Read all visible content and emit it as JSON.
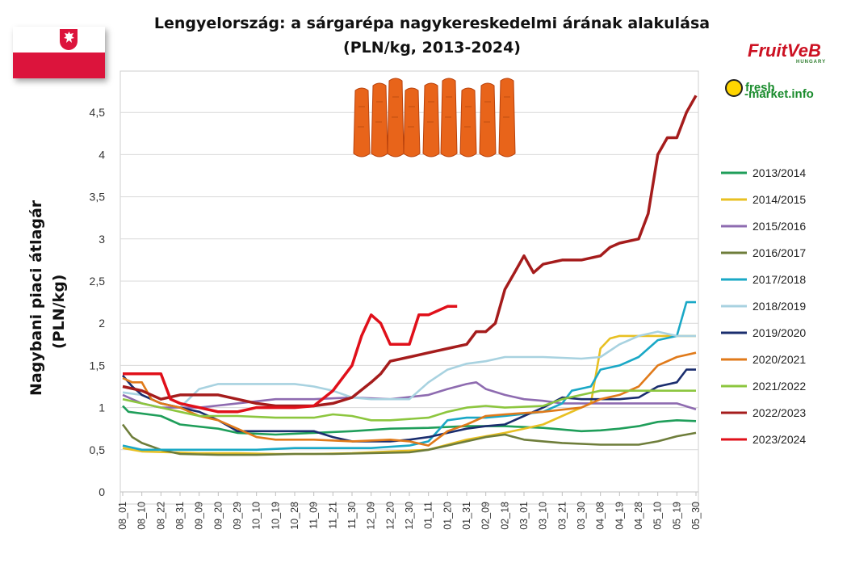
{
  "header": {
    "title_line1": "Lengyelország: a sárgarépa nagykereskedelmi árának alakulása",
    "title_line2": "(PLN/kg, 2013-2024)"
  },
  "yaxis_label_line1": "Nagybani piaci átlagár",
  "yaxis_label_line2": "(PLN/kg)",
  "logos": {
    "fruitveb": "FruitVeB",
    "fruitveb_sub": "HUNGARY",
    "freshmarket_line1": "fresh",
    "freshmarket_line2": "-market.info"
  },
  "chart_data": {
    "type": "line",
    "xlabel": "",
    "ylabel": "Nagybani piaci átlagár (PLN/kg)",
    "ylim": [
      0,
      5
    ],
    "yticks": [
      0,
      0.5,
      1,
      1.5,
      2,
      2.5,
      3,
      3.5,
      4,
      4.5
    ],
    "ytick_labels": [
      "0",
      "0,5",
      "1",
      "1,5",
      "2",
      "2,5",
      "3",
      "3,5",
      "4",
      "4,5"
    ],
    "x_categories": [
      "08_01",
      "08_10",
      "08_22",
      "08_31",
      "09_09",
      "09_20",
      "09_29",
      "10_10",
      "10_19",
      "10_28",
      "11_09",
      "11_21",
      "11_30",
      "12_09",
      "12_20",
      "12_30",
      "01_11",
      "01_20",
      "01_31",
      "02_09",
      "02_18",
      "03_01",
      "03_10",
      "03_21",
      "03_30",
      "04_08",
      "04_19",
      "04_28",
      "05_10",
      "05_19",
      "05_30"
    ],
    "grid": "horizontal",
    "legend_position": "right",
    "series": [
      {
        "name": "2013/2014",
        "color": "#1f9e5a",
        "points": [
          [
            0,
            1.02
          ],
          [
            0.3,
            0.95
          ],
          [
            2,
            0.9
          ],
          [
            3,
            0.8
          ],
          [
            5,
            0.75
          ],
          [
            6,
            0.7
          ],
          [
            8,
            0.68
          ],
          [
            10,
            0.7
          ],
          [
            12,
            0.72
          ],
          [
            14,
            0.75
          ],
          [
            16,
            0.76
          ],
          [
            18,
            0.78
          ],
          [
            20,
            0.78
          ],
          [
            22,
            0.76
          ],
          [
            24,
            0.72
          ],
          [
            25,
            0.73
          ],
          [
            26,
            0.75
          ],
          [
            27,
            0.78
          ],
          [
            28,
            0.83
          ],
          [
            29,
            0.85
          ],
          [
            30,
            0.84
          ]
        ]
      },
      {
        "name": "2014/2015",
        "color": "#e8c022",
        "points": [
          [
            0,
            0.52
          ],
          [
            1,
            0.48
          ],
          [
            4,
            0.46
          ],
          [
            6,
            0.46
          ],
          [
            8,
            0.45
          ],
          [
            10,
            0.45
          ],
          [
            12,
            0.46
          ],
          [
            14,
            0.48
          ],
          [
            16,
            0.5
          ],
          [
            17,
            0.56
          ],
          [
            18,
            0.62
          ],
          [
            20,
            0.7
          ],
          [
            22,
            0.8
          ],
          [
            23,
            0.9
          ],
          [
            24.5,
            1.05
          ],
          [
            25,
            1.7
          ],
          [
            25.5,
            1.82
          ],
          [
            26,
            1.85
          ],
          [
            28,
            1.85
          ],
          [
            29,
            1.85
          ],
          [
            30,
            1.85
          ]
        ]
      },
      {
        "name": "2015/2016",
        "color": "#8e6bb0",
        "points": [
          [
            0,
            1.15
          ],
          [
            1,
            1.05
          ],
          [
            2,
            1.0
          ],
          [
            4,
            1.0
          ],
          [
            6,
            1.05
          ],
          [
            8,
            1.1
          ],
          [
            10,
            1.1
          ],
          [
            12,
            1.12
          ],
          [
            14,
            1.1
          ],
          [
            16,
            1.15
          ],
          [
            17,
            1.22
          ],
          [
            18,
            1.28
          ],
          [
            18.5,
            1.3
          ],
          [
            19,
            1.22
          ],
          [
            20,
            1.15
          ],
          [
            21,
            1.1
          ],
          [
            22,
            1.08
          ],
          [
            23,
            1.05
          ],
          [
            24,
            1.05
          ],
          [
            26,
            1.05
          ],
          [
            28,
            1.05
          ],
          [
            29,
            1.05
          ],
          [
            30,
            0.98
          ]
        ]
      },
      {
        "name": "2016/2017",
        "color": "#6e7d3a",
        "points": [
          [
            0,
            0.8
          ],
          [
            0.5,
            0.65
          ],
          [
            1,
            0.58
          ],
          [
            2,
            0.5
          ],
          [
            3,
            0.45
          ],
          [
            5,
            0.44
          ],
          [
            7,
            0.44
          ],
          [
            9,
            0.45
          ],
          [
            11,
            0.45
          ],
          [
            13,
            0.46
          ],
          [
            15,
            0.47
          ],
          [
            16,
            0.5
          ],
          [
            17,
            0.55
          ],
          [
            18,
            0.6
          ],
          [
            19,
            0.65
          ],
          [
            20,
            0.68
          ],
          [
            21,
            0.62
          ],
          [
            22,
            0.6
          ],
          [
            23,
            0.58
          ],
          [
            25,
            0.56
          ],
          [
            27,
            0.56
          ],
          [
            28,
            0.6
          ],
          [
            29,
            0.66
          ],
          [
            30,
            0.7
          ]
        ]
      },
      {
        "name": "2017/2018",
        "color": "#1aa8c6",
        "points": [
          [
            0,
            0.55
          ],
          [
            1,
            0.5
          ],
          [
            3,
            0.5
          ],
          [
            5,
            0.5
          ],
          [
            7,
            0.5
          ],
          [
            9,
            0.52
          ],
          [
            11,
            0.52
          ],
          [
            13,
            0.52
          ],
          [
            15,
            0.55
          ],
          [
            16,
            0.6
          ],
          [
            17,
            0.85
          ],
          [
            18,
            0.88
          ],
          [
            19,
            0.88
          ],
          [
            20,
            0.9
          ],
          [
            22,
            0.95
          ],
          [
            23,
            1.05
          ],
          [
            23.5,
            1.2
          ],
          [
            24.5,
            1.25
          ],
          [
            25,
            1.45
          ],
          [
            26,
            1.5
          ],
          [
            27,
            1.6
          ],
          [
            28,
            1.8
          ],
          [
            29,
            1.85
          ],
          [
            29.5,
            2.25
          ],
          [
            30,
            2.25
          ]
        ]
      },
      {
        "name": "2018/2019",
        "color": "#a8d2e0",
        "points": [
          [
            0,
            1.18
          ],
          [
            1,
            1.15
          ],
          [
            2,
            1.05
          ],
          [
            3,
            1.0
          ],
          [
            4,
            1.22
          ],
          [
            5,
            1.28
          ],
          [
            7,
            1.28
          ],
          [
            9,
            1.28
          ],
          [
            10,
            1.25
          ],
          [
            11,
            1.2
          ],
          [
            12,
            1.12
          ],
          [
            13,
            1.1
          ],
          [
            15,
            1.1
          ],
          [
            16,
            1.3
          ],
          [
            17,
            1.45
          ],
          [
            18,
            1.52
          ],
          [
            19,
            1.55
          ],
          [
            20,
            1.6
          ],
          [
            22,
            1.6
          ],
          [
            24,
            1.58
          ],
          [
            25,
            1.6
          ],
          [
            26,
            1.75
          ],
          [
            27,
            1.85
          ],
          [
            28,
            1.9
          ],
          [
            29,
            1.85
          ],
          [
            30,
            1.85
          ]
        ]
      },
      {
        "name": "2019/2020",
        "color": "#1a2d6e",
        "points": [
          [
            0,
            1.38
          ],
          [
            0.5,
            1.25
          ],
          [
            1,
            1.15
          ],
          [
            2,
            1.05
          ],
          [
            4,
            0.95
          ],
          [
            5,
            0.85
          ],
          [
            6,
            0.72
          ],
          [
            8,
            0.72
          ],
          [
            10,
            0.72
          ],
          [
            11,
            0.65
          ],
          [
            12,
            0.6
          ],
          [
            14,
            0.6
          ],
          [
            15,
            0.62
          ],
          [
            16,
            0.65
          ],
          [
            17,
            0.7
          ],
          [
            18,
            0.75
          ],
          [
            19,
            0.78
          ],
          [
            20,
            0.8
          ],
          [
            21,
            0.9
          ],
          [
            22,
            1.0
          ],
          [
            23,
            1.12
          ],
          [
            24,
            1.1
          ],
          [
            25,
            1.1
          ],
          [
            26,
            1.1
          ],
          [
            27,
            1.12
          ],
          [
            28,
            1.25
          ],
          [
            29,
            1.3
          ],
          [
            29.5,
            1.45
          ],
          [
            30,
            1.45
          ]
        ]
      },
      {
        "name": "2020/2021",
        "color": "#e07a1a",
        "points": [
          [
            0,
            1.35
          ],
          [
            0.5,
            1.3
          ],
          [
            1,
            1.3
          ],
          [
            1.5,
            1.1
          ],
          [
            2,
            1.05
          ],
          [
            3,
            1.0
          ],
          [
            4,
            0.9
          ],
          [
            5,
            0.85
          ],
          [
            6,
            0.75
          ],
          [
            7,
            0.65
          ],
          [
            8,
            0.62
          ],
          [
            10,
            0.62
          ],
          [
            12,
            0.6
          ],
          [
            14,
            0.62
          ],
          [
            15,
            0.6
          ],
          [
            16,
            0.55
          ],
          [
            17,
            0.72
          ],
          [
            18,
            0.8
          ],
          [
            19,
            0.9
          ],
          [
            20,
            0.92
          ],
          [
            22,
            0.95
          ],
          [
            24,
            1.0
          ],
          [
            25,
            1.1
          ],
          [
            26,
            1.15
          ],
          [
            27,
            1.25
          ],
          [
            28,
            1.5
          ],
          [
            29,
            1.6
          ],
          [
            30,
            1.65
          ]
        ]
      },
      {
        "name": "2021/2022",
        "color": "#8cc63e",
        "points": [
          [
            0,
            1.1
          ],
          [
            1,
            1.05
          ],
          [
            2,
            1.0
          ],
          [
            3,
            0.95
          ],
          [
            4,
            0.9
          ],
          [
            6,
            0.9
          ],
          [
            8,
            0.88
          ],
          [
            10,
            0.88
          ],
          [
            11,
            0.92
          ],
          [
            12,
            0.9
          ],
          [
            13,
            0.85
          ],
          [
            14,
            0.85
          ],
          [
            16,
            0.88
          ],
          [
            17,
            0.95
          ],
          [
            18,
            1.0
          ],
          [
            19,
            1.02
          ],
          [
            20,
            1.0
          ],
          [
            22,
            1.02
          ],
          [
            23,
            1.1
          ],
          [
            24,
            1.15
          ],
          [
            25,
            1.2
          ],
          [
            26,
            1.2
          ],
          [
            28,
            1.2
          ],
          [
            29,
            1.2
          ],
          [
            30,
            1.2
          ]
        ]
      },
      {
        "name": "2022/2023",
        "color": "#a51c1c",
        "points": [
          [
            0,
            1.25
          ],
          [
            1,
            1.2
          ],
          [
            2,
            1.1
          ],
          [
            3,
            1.15
          ],
          [
            4,
            1.15
          ],
          [
            5,
            1.15
          ],
          [
            6,
            1.1
          ],
          [
            7,
            1.05
          ],
          [
            8,
            1.02
          ],
          [
            10,
            1.02
          ],
          [
            11,
            1.05
          ],
          [
            12,
            1.12
          ],
          [
            13,
            1.3
          ],
          [
            13.5,
            1.4
          ],
          [
            14,
            1.55
          ],
          [
            15,
            1.6
          ],
          [
            16,
            1.65
          ],
          [
            17,
            1.7
          ],
          [
            18,
            1.75
          ],
          [
            18.5,
            1.9
          ],
          [
            19,
            1.9
          ],
          [
            19.5,
            2.0
          ],
          [
            20,
            2.4
          ],
          [
            20.5,
            2.6
          ],
          [
            21,
            2.8
          ],
          [
            21.5,
            2.6
          ],
          [
            22,
            2.7
          ],
          [
            23,
            2.75
          ],
          [
            24,
            2.75
          ],
          [
            25,
            2.8
          ],
          [
            25.5,
            2.9
          ],
          [
            26,
            2.95
          ],
          [
            27,
            3.0
          ],
          [
            27.5,
            3.3
          ],
          [
            28,
            4.0
          ],
          [
            28.5,
            4.2
          ],
          [
            29,
            4.2
          ],
          [
            29.5,
            4.5
          ],
          [
            30,
            4.7
          ]
        ]
      },
      {
        "name": "2023/2024",
        "color": "#e0101a",
        "points": [
          [
            0,
            1.4
          ],
          [
            1,
            1.4
          ],
          [
            2,
            1.4
          ],
          [
            2.5,
            1.1
          ],
          [
            3,
            1.05
          ],
          [
            4,
            1.0
          ],
          [
            5,
            0.95
          ],
          [
            6,
            0.95
          ],
          [
            7,
            1.0
          ],
          [
            8,
            1.0
          ],
          [
            9,
            1.0
          ],
          [
            10,
            1.02
          ],
          [
            11,
            1.2
          ],
          [
            12,
            1.5
          ],
          [
            12.5,
            1.85
          ],
          [
            13,
            2.1
          ],
          [
            13.5,
            2.0
          ],
          [
            14,
            1.75
          ],
          [
            15,
            1.75
          ],
          [
            15.5,
            2.1
          ],
          [
            16,
            2.1
          ],
          [
            17,
            2.2
          ],
          [
            17.5,
            2.2
          ]
        ]
      }
    ]
  }
}
